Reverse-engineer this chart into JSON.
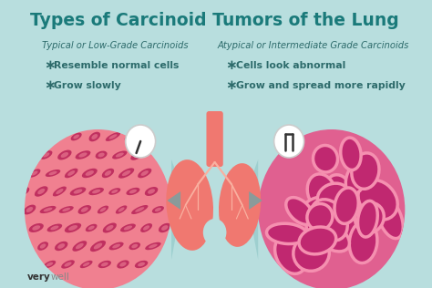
{
  "title": "Types of Carcinoid Tumors of the Lung",
  "title_color": "#1a7a7a",
  "bg_color": "#b8dede",
  "left_heading": "Typical or Low-Grade Carcinoids",
  "right_heading": "Atypical or Intermediate Grade Carcinoids",
  "left_bullets": [
    "Resemble normal cells",
    "Grow slowly"
  ],
  "right_bullets": [
    "Cells look abnormal",
    "Grow and spread more rapidly"
  ],
  "text_color": "#2d6b6b",
  "circle_left_bg": "#f08090",
  "circle_left_stripe_bg": "#f590a0",
  "circle_left_stripe_fg": "#c03060",
  "circle_right_bg": "#e06090",
  "circle_right_cell_fill": "#c02870",
  "circle_right_cell_edge": "#f590b0",
  "lung_color": "#f07870",
  "lung_inner": "#f9b0a0",
  "cone_color": "#90c8c8",
  "cone_alpha": 0.65,
  "mag_circle_color": "#ffffff",
  "watermark_very_color": "#333333",
  "watermark_well_color": "#888888"
}
